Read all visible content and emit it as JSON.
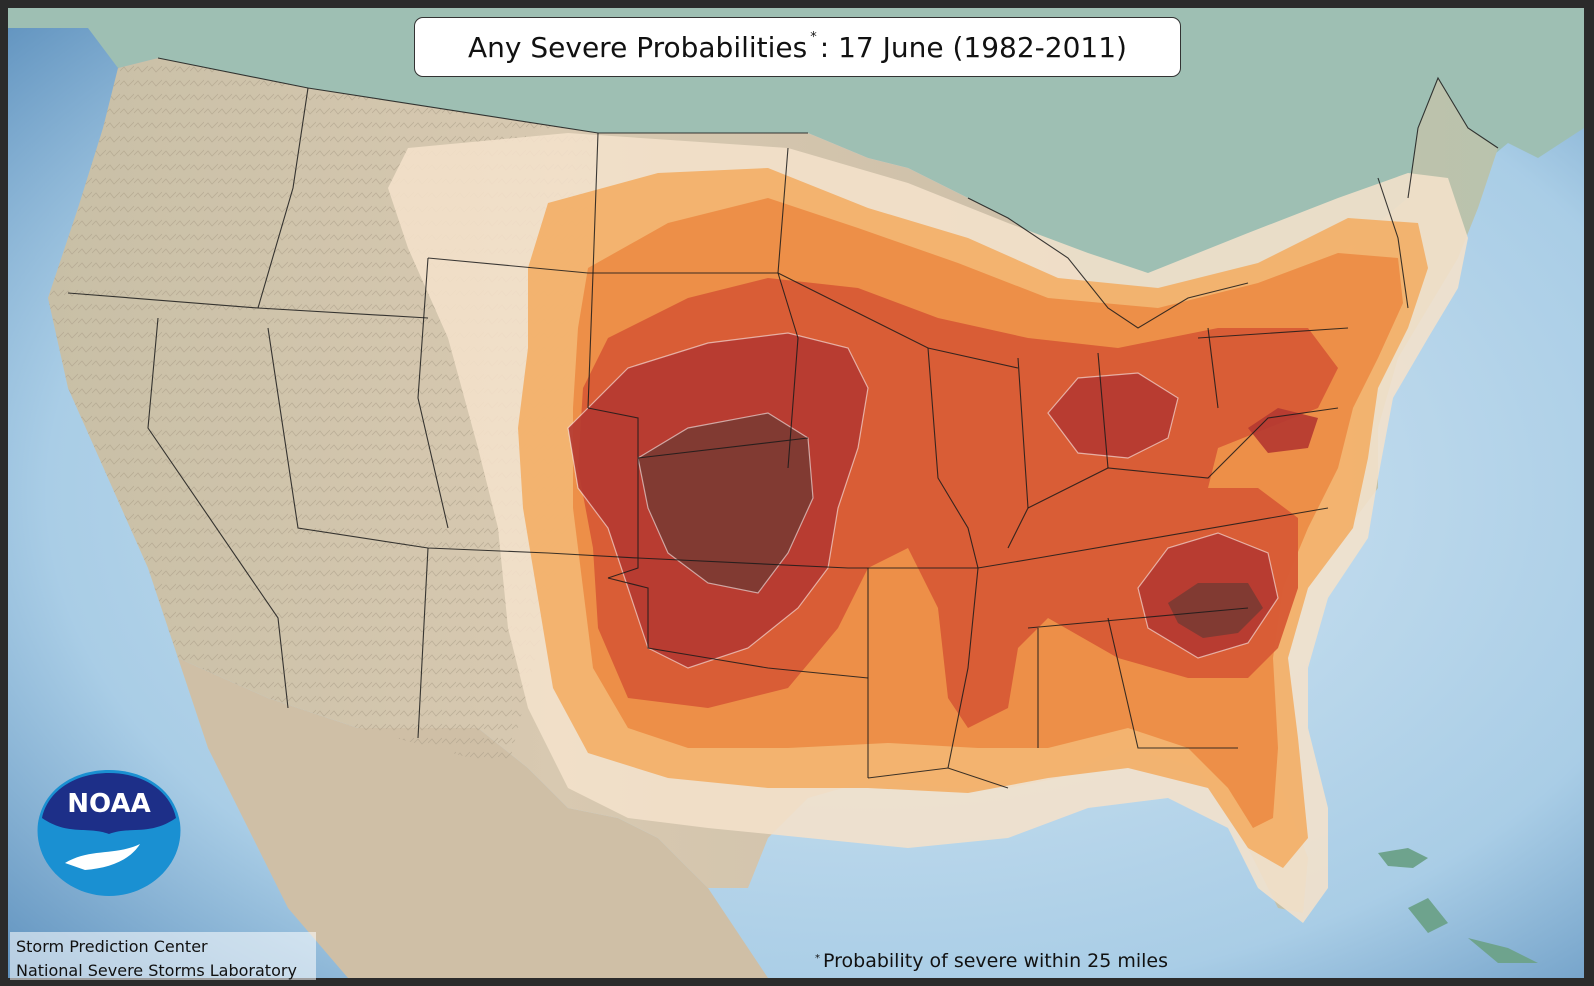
{
  "title": {
    "main": "Any Severe Probabilities",
    "marker": "*",
    "date": ": 17 June (1982-2011)"
  },
  "footnote": {
    "marker": "*",
    "text": "Probability of severe within 25 miles"
  },
  "credits": {
    "line1": "Storm Prediction Center",
    "line2": "National Severe Storms Laboratory"
  },
  "logo": {
    "text": "NOAA",
    "name": "noaa-logo"
  },
  "colors": {
    "ocean": "#a9cde6",
    "land": "#d9cbb5",
    "canada": "#9fc1b6",
    "band1": "#f3dfc7",
    "band2": "#f1a860",
    "band3": "#e9843c",
    "band4": "#d85a34",
    "band5": "#b33a30",
    "band6": "#7a3a34",
    "logo_blue": "#1d2f88",
    "logo_sky": "#1a8fd0"
  }
}
